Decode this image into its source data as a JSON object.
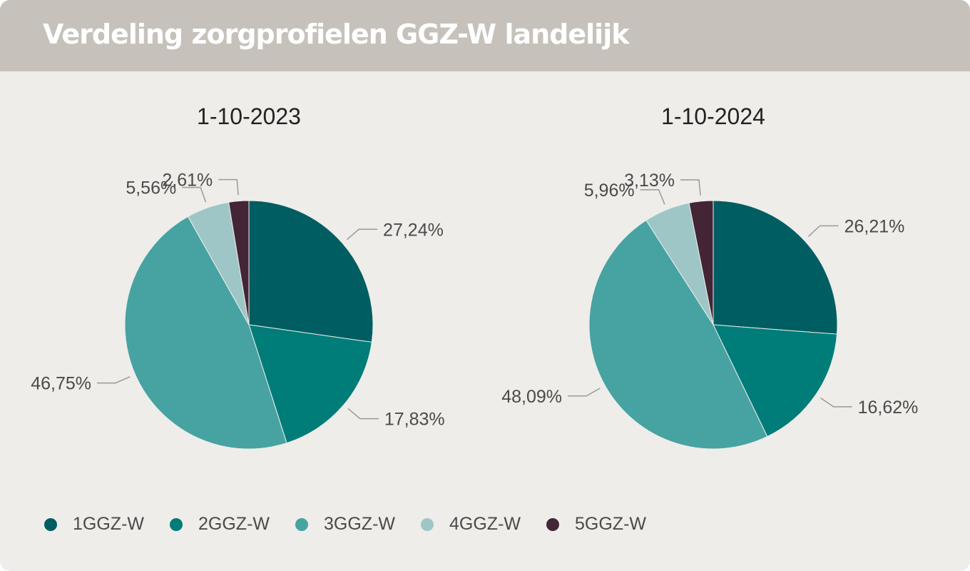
{
  "header": {
    "title": "Verdeling zorgprofielen GGZ-W landelijk"
  },
  "chart_data": [
    {
      "type": "pie",
      "title": "1-10-2023",
      "categories": [
        "1GGZ-W",
        "2GGZ-W",
        "3GGZ-W",
        "4GGZ-W",
        "5GGZ-W"
      ],
      "values": [
        27.24,
        17.83,
        46.75,
        5.56,
        2.61
      ],
      "labels": [
        "27,24%",
        "17,83%",
        "46,75%",
        "5,56%",
        "2,61%"
      ]
    },
    {
      "type": "pie",
      "title": "1-10-2024",
      "categories": [
        "1GGZ-W",
        "2GGZ-W",
        "3GGZ-W",
        "4GGZ-W",
        "5GGZ-W"
      ],
      "values": [
        26.21,
        16.62,
        48.09,
        5.96,
        3.13
      ],
      "labels": [
        "26,21%",
        "16,62%",
        "48,09%",
        "5,96%",
        "3,13%"
      ]
    }
  ],
  "legend": [
    {
      "label": "1GGZ-W",
      "color": "#005e62"
    },
    {
      "label": "2GGZ-W",
      "color": "#007c79"
    },
    {
      "label": "3GGZ-W",
      "color": "#46a3a2"
    },
    {
      "label": "4GGZ-W",
      "color": "#9ec6c6"
    },
    {
      "label": "5GGZ-W",
      "color": "#432536"
    }
  ]
}
